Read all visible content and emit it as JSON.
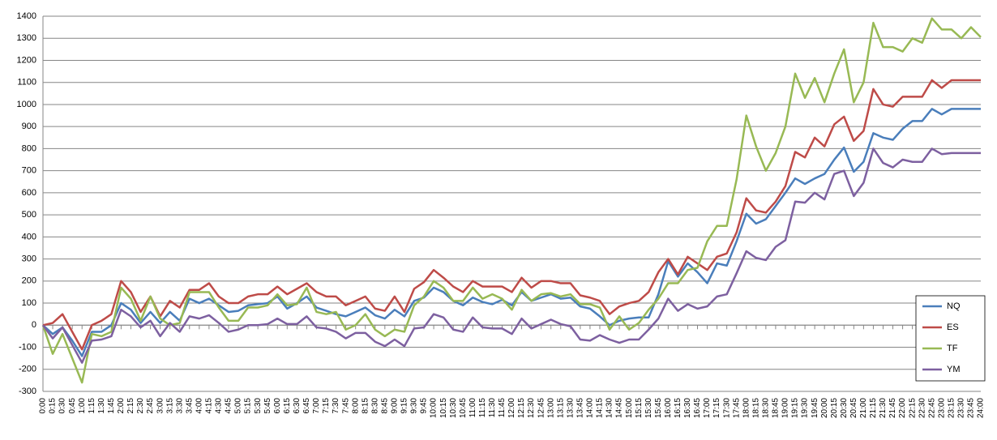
{
  "chart_data": {
    "type": "line",
    "categories": [
      "0:00",
      "0:15",
      "0:30",
      "0:45",
      "1:00",
      "1:15",
      "1:30",
      "1:45",
      "2:00",
      "2:15",
      "2:30",
      "2:45",
      "3:00",
      "3:15",
      "3:30",
      "3:45",
      "4:00",
      "4:15",
      "4:30",
      "4:45",
      "5:00",
      "5:15",
      "5:30",
      "5:45",
      "6:00",
      "6:15",
      "6:30",
      "6:45",
      "7:00",
      "7:15",
      "7:30",
      "7:45",
      "8:00",
      "8:15",
      "8:30",
      "8:45",
      "9:00",
      "9:15",
      "9:30",
      "9:45",
      "10:00",
      "10:15",
      "10:30",
      "10:45",
      "11:00",
      "11:15",
      "11:30",
      "11:45",
      "12:00",
      "12:15",
      "12:30",
      "12:45",
      "13:00",
      "13:15",
      "13:30",
      "13:45",
      "14:00",
      "14:15",
      "14:30",
      "14:45",
      "15:00",
      "15:15",
      "15:30",
      "15:45",
      "16:00",
      "16:15",
      "16:30",
      "16:45",
      "17:00",
      "17:15",
      "17:30",
      "17:45",
      "18:00",
      "18:15",
      "18:30",
      "18:45",
      "19:00",
      "19:15",
      "19:30",
      "19:45",
      "20:00",
      "20:15",
      "20:30",
      "20:45",
      "21:00",
      "21:15",
      "21:30",
      "21:45",
      "22:00",
      "22:15",
      "22:30",
      "22:45",
      "23:00",
      "23:15",
      "23:30",
      "23:45",
      "24:00"
    ],
    "series": [
      {
        "name": "NQ",
        "color": "#4a7ebb",
        "values": [
          0,
          -40,
          -10,
          -70,
          -140,
          -30,
          -30,
          0,
          100,
          70,
          10,
          60,
          10,
          60,
          20,
          120,
          100,
          120,
          90,
          60,
          65,
          90,
          95,
          100,
          130,
          75,
          100,
          130,
          80,
          65,
          50,
          40,
          60,
          80,
          45,
          30,
          70,
          40,
          110,
          125,
          170,
          150,
          110,
          90,
          125,
          105,
          95,
          115,
          90,
          150,
          110,
          125,
          140,
          120,
          125,
          85,
          75,
          40,
          0,
          20,
          30,
          35,
          35,
          140,
          290,
          220,
          280,
          240,
          190,
          280,
          270,
          380,
          505,
          460,
          480,
          540,
          600,
          665,
          640,
          665,
          685,
          750,
          805,
          695,
          740,
          870,
          850,
          840,
          890,
          925,
          925,
          980,
          955,
          980,
          980,
          980,
          980
        ]
      },
      {
        "name": "ES",
        "color": "#be4b48",
        "values": [
          0,
          10,
          50,
          -30,
          -110,
          0,
          20,
          50,
          200,
          150,
          60,
          130,
          40,
          110,
          80,
          160,
          160,
          190,
          130,
          100,
          100,
          130,
          140,
          140,
          175,
          140,
          165,
          190,
          150,
          130,
          130,
          90,
          110,
          130,
          75,
          65,
          130,
          60,
          165,
          195,
          250,
          215,
          175,
          150,
          200,
          175,
          175,
          175,
          150,
          215,
          170,
          200,
          200,
          190,
          190,
          135,
          125,
          110,
          50,
          85,
          100,
          110,
          150,
          240,
          300,
          230,
          310,
          280,
          250,
          310,
          325,
          420,
          575,
          520,
          510,
          560,
          630,
          785,
          760,
          850,
          810,
          910,
          945,
          835,
          880,
          1070,
          1000,
          990,
          1035,
          1035,
          1035,
          1110,
          1075,
          1110,
          1110,
          1110,
          1110
        ]
      },
      {
        "name": "TF",
        "color": "#98b954",
        "values": [
          0,
          -130,
          -40,
          -150,
          -260,
          -40,
          -50,
          -30,
          170,
          120,
          20,
          130,
          30,
          0,
          10,
          150,
          150,
          150,
          80,
          20,
          20,
          80,
          80,
          90,
          140,
          90,
          95,
          170,
          60,
          50,
          60,
          -20,
          0,
          50,
          -20,
          -50,
          -20,
          -30,
          90,
          130,
          200,
          170,
          110,
          110,
          170,
          120,
          140,
          120,
          70,
          160,
          110,
          140,
          145,
          130,
          140,
          95,
          95,
          80,
          -20,
          40,
          -20,
          10,
          70,
          120,
          190,
          190,
          250,
          260,
          380,
          450,
          450,
          660,
          950,
          810,
          700,
          780,
          900,
          1140,
          1030,
          1120,
          1010,
          1140,
          1250,
          1010,
          1100,
          1370,
          1260,
          1260,
          1240,
          1300,
          1280,
          1390,
          1340,
          1340,
          1300,
          1350,
          1305
        ]
      },
      {
        "name": "YM",
        "color": "#7d60a0",
        "values": [
          0,
          -60,
          -10,
          -90,
          -170,
          -70,
          -65,
          -50,
          70,
          40,
          -10,
          20,
          -50,
          10,
          -30,
          40,
          30,
          45,
          10,
          -30,
          -20,
          0,
          0,
          5,
          30,
          5,
          5,
          40,
          -10,
          -15,
          -30,
          -60,
          -35,
          -35,
          -75,
          -95,
          -65,
          -95,
          -15,
          -10,
          50,
          35,
          -20,
          -30,
          35,
          -10,
          -15,
          -15,
          -40,
          30,
          -15,
          5,
          25,
          5,
          -5,
          -65,
          -70,
          -45,
          -65,
          -80,
          -65,
          -65,
          -20,
          30,
          120,
          65,
          95,
          75,
          85,
          130,
          140,
          235,
          335,
          305,
          295,
          355,
          385,
          560,
          555,
          600,
          570,
          685,
          700,
          585,
          645,
          800,
          735,
          715,
          750,
          740,
          740,
          800,
          775,
          780,
          780,
          780,
          780
        ]
      }
    ],
    "ylim": [
      -300,
      1400
    ],
    "yticks": [
      -300,
      -200,
      -100,
      0,
      100,
      200,
      300,
      400,
      500,
      600,
      700,
      800,
      900,
      1000,
      1100,
      1200,
      1300,
      1400
    ],
    "grid": true,
    "legend_position": "right"
  }
}
